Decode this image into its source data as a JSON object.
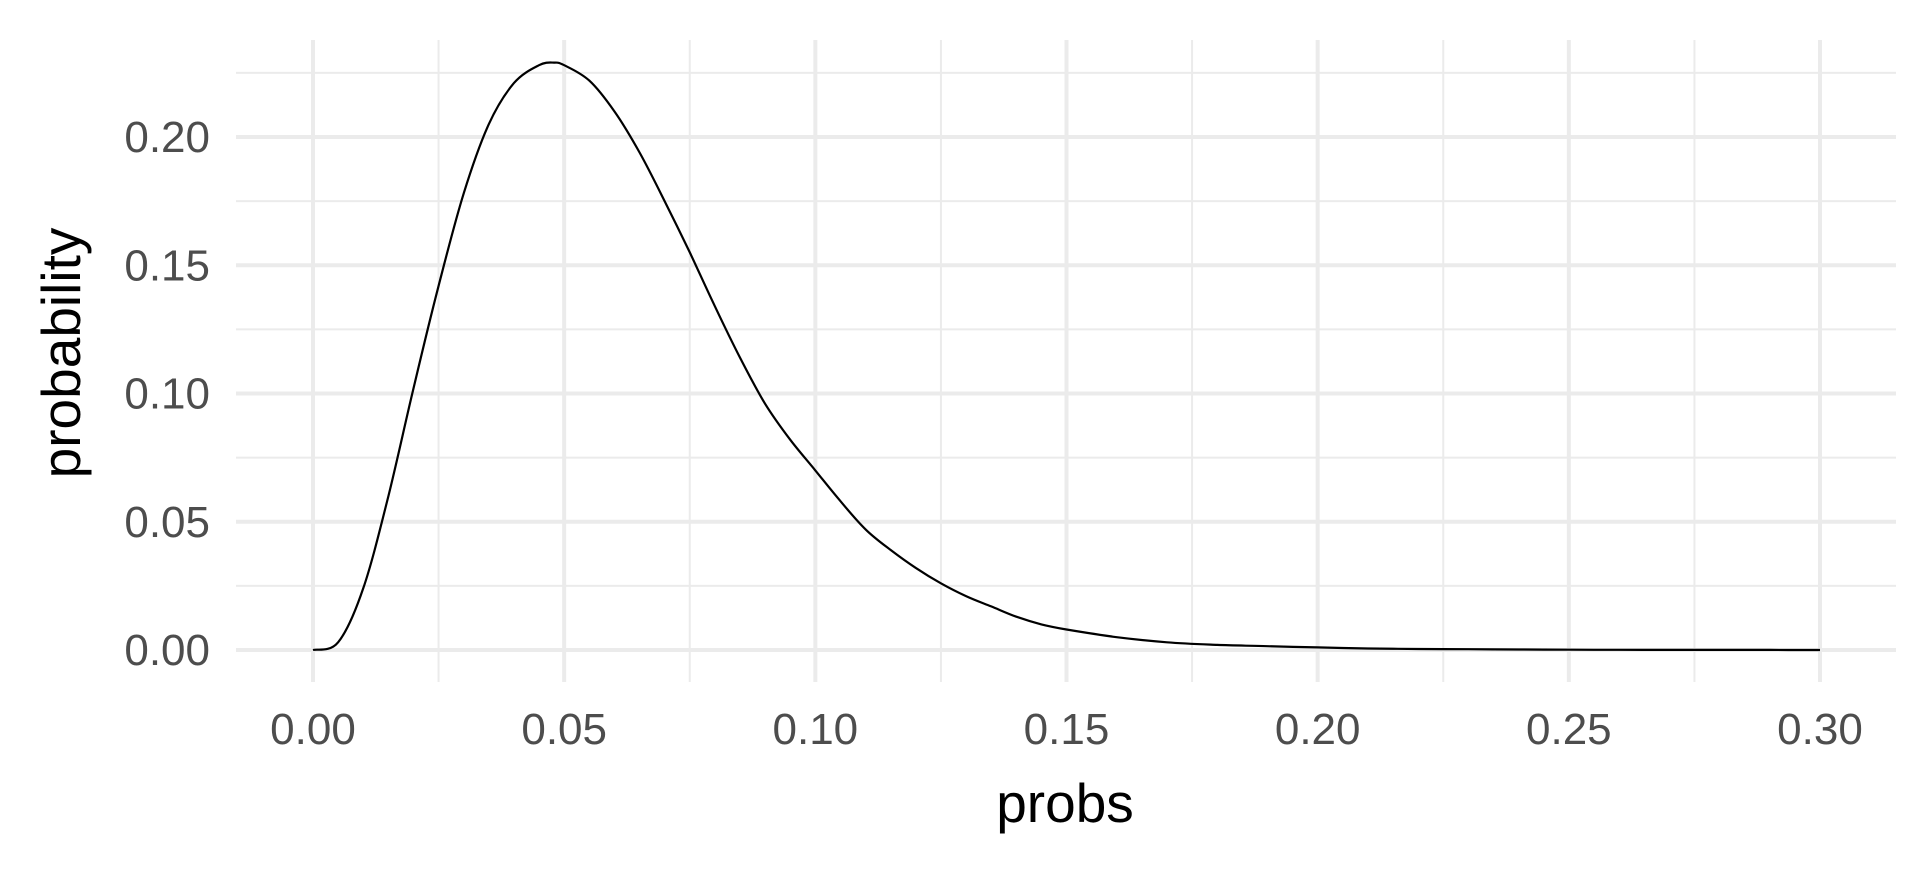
{
  "chart_data": {
    "type": "line",
    "title": "",
    "xlabel": "probs",
    "ylabel": "probability",
    "xlim": [
      0.0,
      0.3
    ],
    "ylim": [
      0.0,
      0.23
    ],
    "grid": true,
    "x_ticks": [
      {
        "value": 0.0,
        "label": "0.00"
      },
      {
        "value": 0.05,
        "label": "0.05"
      },
      {
        "value": 0.1,
        "label": "0.10"
      },
      {
        "value": 0.15,
        "label": "0.15"
      },
      {
        "value": 0.2,
        "label": "0.20"
      },
      {
        "value": 0.25,
        "label": "0.25"
      },
      {
        "value": 0.3,
        "label": "0.30"
      }
    ],
    "y_ticks": [
      {
        "value": 0.0,
        "label": "0.00"
      },
      {
        "value": 0.05,
        "label": "0.05"
      },
      {
        "value": 0.1,
        "label": "0.10"
      },
      {
        "value": 0.15,
        "label": "0.15"
      },
      {
        "value": 0.2,
        "label": "0.20"
      }
    ],
    "series": [
      {
        "color": "#000000",
        "x": [
          0.0,
          0.005,
          0.01,
          0.015,
          0.02,
          0.025,
          0.03,
          0.035,
          0.04,
          0.045,
          0.048,
          0.05,
          0.055,
          0.06,
          0.065,
          0.07,
          0.075,
          0.08,
          0.085,
          0.09,
          0.095,
          0.1,
          0.105,
          0.11,
          0.115,
          0.12,
          0.125,
          0.13,
          0.135,
          0.14,
          0.145,
          0.15,
          0.16,
          0.17,
          0.18,
          0.19,
          0.2,
          0.21,
          0.22,
          0.23,
          0.24,
          0.25,
          0.26,
          0.27,
          0.28,
          0.29,
          0.3
        ],
        "y": [
          0.0,
          0.003,
          0.024,
          0.06,
          0.102,
          0.142,
          0.178,
          0.205,
          0.221,
          0.228,
          0.229,
          0.228,
          0.222,
          0.21,
          0.194,
          0.175,
          0.155,
          0.134,
          0.114,
          0.096,
          0.082,
          0.07,
          0.058,
          0.047,
          0.039,
          0.032,
          0.026,
          0.021,
          0.017,
          0.013,
          0.01,
          0.008,
          0.005,
          0.003,
          0.002,
          0.0015,
          0.001,
          0.0006,
          0.0004,
          0.0003,
          0.0002,
          0.0001,
          8e-05,
          5e-05,
          3e-05,
          2e-05,
          1e-05
        ]
      }
    ]
  }
}
